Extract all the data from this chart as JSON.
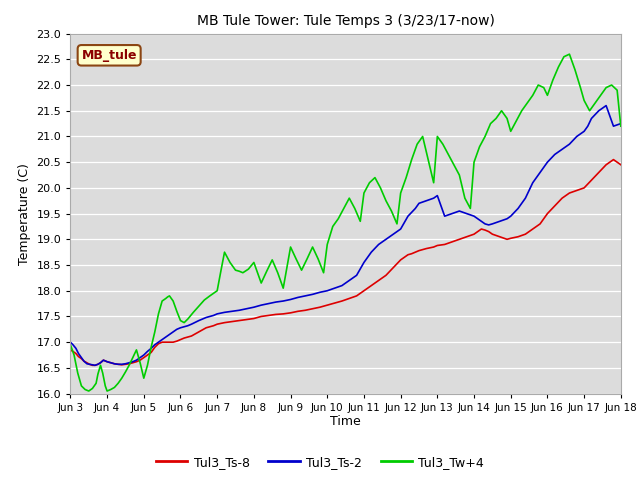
{
  "title": "MB Tule Tower: Tule Temps 3 (3/23/17-now)",
  "xlabel": "Time",
  "ylabel": "Temperature (C)",
  "ylim": [
    16.0,
    23.0
  ],
  "xlim": [
    0,
    15
  ],
  "yticks": [
    16.0,
    16.5,
    17.0,
    17.5,
    18.0,
    18.5,
    19.0,
    19.5,
    20.0,
    20.5,
    21.0,
    21.5,
    22.0,
    22.5,
    23.0
  ],
  "xtick_labels": [
    "Jun 3",
    "Jun 4",
    "Jun 5",
    "Jun 6",
    "Jun 7",
    "Jun 8",
    "Jun 9",
    "Jun 10",
    "Jun 11",
    "Jun 12",
    "Jun 13",
    "Jun 14",
    "Jun 15",
    "Jun 16",
    "Jun 17",
    "Jun 18"
  ],
  "bg_color": "#dcdcdc",
  "fig_bg_color": "#ffffff",
  "legend_box_label": "MB_tule",
  "legend_box_color": "#ffffcc",
  "legend_box_edge": "#8B4513",
  "line_colors": [
    "#dd0000",
    "#0000cc",
    "#00cc00"
  ],
  "line_labels": [
    "Tul3_Ts-8",
    "Tul3_Ts-2",
    "Tul3_Tw+4"
  ],
  "line_width": 1.2,
  "ts8_x": [
    0.0,
    0.07,
    0.15,
    0.22,
    0.3,
    0.37,
    0.45,
    0.52,
    0.6,
    0.67,
    0.75,
    0.82,
    0.9,
    1.0,
    1.1,
    1.2,
    1.3,
    1.4,
    1.5,
    1.6,
    1.7,
    1.8,
    1.9,
    2.0,
    2.1,
    2.2,
    2.3,
    2.4,
    2.5,
    2.6,
    2.7,
    2.8,
    2.9,
    3.0,
    3.1,
    3.2,
    3.3,
    3.5,
    3.7,
    3.9,
    4.0,
    4.2,
    4.4,
    4.6,
    4.8,
    5.0,
    5.2,
    5.4,
    5.6,
    5.8,
    6.0,
    6.2,
    6.4,
    6.6,
    6.8,
    7.0,
    7.2,
    7.4,
    7.6,
    7.8,
    8.0,
    8.2,
    8.4,
    8.6,
    8.8,
    9.0,
    9.1,
    9.2,
    9.3,
    9.4,
    9.5,
    9.7,
    9.9,
    10.0,
    10.2,
    10.4,
    10.6,
    10.8,
    11.0,
    11.1,
    11.2,
    11.3,
    11.4,
    11.5,
    11.7,
    11.9,
    12.0,
    12.2,
    12.4,
    12.6,
    12.8,
    13.0,
    13.2,
    13.4,
    13.6,
    13.8,
    14.0,
    14.2,
    14.4,
    14.6,
    14.8,
    15.0
  ],
  "ts8_y": [
    16.85,
    16.82,
    16.78,
    16.72,
    16.68,
    16.63,
    16.6,
    16.57,
    16.55,
    16.55,
    16.57,
    16.6,
    16.65,
    16.62,
    16.6,
    16.58,
    16.57,
    16.56,
    16.57,
    16.58,
    16.6,
    16.62,
    16.65,
    16.7,
    16.75,
    16.8,
    16.9,
    16.97,
    17.0,
    17.0,
    17.0,
    17.0,
    17.02,
    17.05,
    17.08,
    17.1,
    17.12,
    17.2,
    17.28,
    17.32,
    17.35,
    17.38,
    17.4,
    17.42,
    17.44,
    17.46,
    17.5,
    17.52,
    17.54,
    17.55,
    17.57,
    17.6,
    17.62,
    17.65,
    17.68,
    17.72,
    17.76,
    17.8,
    17.85,
    17.9,
    18.0,
    18.1,
    18.2,
    18.3,
    18.45,
    18.6,
    18.65,
    18.7,
    18.72,
    18.75,
    18.78,
    18.82,
    18.85,
    18.88,
    18.9,
    18.95,
    19.0,
    19.05,
    19.1,
    19.15,
    19.2,
    19.18,
    19.15,
    19.1,
    19.05,
    19.0,
    19.02,
    19.05,
    19.1,
    19.2,
    19.3,
    19.5,
    19.65,
    19.8,
    19.9,
    19.95,
    20.0,
    20.15,
    20.3,
    20.45,
    20.55,
    20.45
  ],
  "ts2_x": [
    0.0,
    0.07,
    0.15,
    0.22,
    0.3,
    0.37,
    0.45,
    0.52,
    0.6,
    0.67,
    0.75,
    0.82,
    0.9,
    1.0,
    1.1,
    1.2,
    1.3,
    1.4,
    1.5,
    1.6,
    1.7,
    1.8,
    1.9,
    2.0,
    2.1,
    2.2,
    2.3,
    2.4,
    2.5,
    2.6,
    2.7,
    2.8,
    2.9,
    3.0,
    3.1,
    3.2,
    3.3,
    3.5,
    3.7,
    3.9,
    4.0,
    4.2,
    4.4,
    4.6,
    4.8,
    5.0,
    5.2,
    5.4,
    5.6,
    5.8,
    6.0,
    6.2,
    6.4,
    6.6,
    6.8,
    7.0,
    7.2,
    7.4,
    7.6,
    7.8,
    8.0,
    8.2,
    8.4,
    8.6,
    8.8,
    9.0,
    9.2,
    9.4,
    9.5,
    9.7,
    9.9,
    10.0,
    10.2,
    10.4,
    10.6,
    10.8,
    11.0,
    11.1,
    11.2,
    11.3,
    11.4,
    11.5,
    11.7,
    11.9,
    12.0,
    12.2,
    12.4,
    12.6,
    12.8,
    13.0,
    13.2,
    13.4,
    13.6,
    13.8,
    14.0,
    14.1,
    14.2,
    14.4,
    14.6,
    14.8,
    15.0
  ],
  "ts2_y": [
    17.0,
    16.95,
    16.88,
    16.78,
    16.7,
    16.63,
    16.58,
    16.57,
    16.56,
    16.55,
    16.57,
    16.6,
    16.65,
    16.62,
    16.6,
    16.58,
    16.57,
    16.57,
    16.58,
    16.6,
    16.62,
    16.65,
    16.7,
    16.75,
    16.82,
    16.88,
    16.95,
    17.0,
    17.05,
    17.1,
    17.15,
    17.2,
    17.25,
    17.28,
    17.3,
    17.32,
    17.35,
    17.42,
    17.48,
    17.52,
    17.55,
    17.58,
    17.6,
    17.62,
    17.65,
    17.68,
    17.72,
    17.75,
    17.78,
    17.8,
    17.83,
    17.87,
    17.9,
    17.93,
    17.97,
    18.0,
    18.05,
    18.1,
    18.2,
    18.3,
    18.55,
    18.75,
    18.9,
    19.0,
    19.1,
    19.2,
    19.45,
    19.6,
    19.7,
    19.75,
    19.8,
    19.85,
    19.45,
    19.5,
    19.55,
    19.5,
    19.45,
    19.4,
    19.35,
    19.3,
    19.28,
    19.3,
    19.35,
    19.4,
    19.45,
    19.6,
    19.8,
    20.1,
    20.3,
    20.5,
    20.65,
    20.75,
    20.85,
    21.0,
    21.1,
    21.2,
    21.35,
    21.5,
    21.6,
    21.2,
    21.25
  ],
  "tw4_x": [
    0.0,
    0.1,
    0.2,
    0.3,
    0.4,
    0.5,
    0.6,
    0.7,
    0.75,
    0.82,
    0.88,
    0.95,
    1.0,
    1.1,
    1.2,
    1.3,
    1.4,
    1.5,
    1.6,
    1.7,
    1.8,
    1.9,
    2.0,
    2.1,
    2.2,
    2.3,
    2.4,
    2.5,
    2.6,
    2.65,
    2.7,
    2.75,
    2.8,
    2.9,
    3.0,
    3.1,
    3.2,
    3.35,
    3.5,
    3.65,
    3.8,
    3.9,
    4.0,
    4.1,
    4.2,
    4.35,
    4.5,
    4.6,
    4.7,
    4.85,
    5.0,
    5.1,
    5.2,
    5.35,
    5.5,
    5.65,
    5.8,
    5.9,
    6.0,
    6.15,
    6.3,
    6.45,
    6.6,
    6.75,
    6.9,
    7.0,
    7.15,
    7.3,
    7.45,
    7.6,
    7.75,
    7.9,
    8.0,
    8.15,
    8.3,
    8.45,
    8.6,
    8.75,
    8.9,
    9.0,
    9.15,
    9.3,
    9.45,
    9.6,
    9.75,
    9.9,
    10.0,
    10.15,
    10.3,
    10.45,
    10.6,
    10.75,
    10.9,
    11.0,
    11.15,
    11.3,
    11.45,
    11.6,
    11.75,
    11.9,
    12.0,
    12.15,
    12.3,
    12.45,
    12.6,
    12.75,
    12.9,
    13.0,
    13.15,
    13.3,
    13.45,
    13.6,
    13.75,
    13.9,
    14.0,
    14.15,
    14.3,
    14.45,
    14.6,
    14.75,
    14.9,
    15.0
  ],
  "tw4_y": [
    16.95,
    16.75,
    16.4,
    16.15,
    16.08,
    16.05,
    16.1,
    16.2,
    16.38,
    16.55,
    16.4,
    16.15,
    16.05,
    16.08,
    16.12,
    16.2,
    16.3,
    16.42,
    16.55,
    16.7,
    16.85,
    16.6,
    16.3,
    16.55,
    16.9,
    17.2,
    17.55,
    17.8,
    17.85,
    17.88,
    17.9,
    17.85,
    17.8,
    17.6,
    17.42,
    17.38,
    17.45,
    17.58,
    17.7,
    17.82,
    17.9,
    17.95,
    18.0,
    18.38,
    18.75,
    18.55,
    18.4,
    18.38,
    18.35,
    18.42,
    18.55,
    18.35,
    18.15,
    18.38,
    18.6,
    18.35,
    18.05,
    18.45,
    18.85,
    18.62,
    18.4,
    18.62,
    18.85,
    18.62,
    18.35,
    18.9,
    19.25,
    19.4,
    19.6,
    19.8,
    19.6,
    19.35,
    19.9,
    20.1,
    20.2,
    20.0,
    19.75,
    19.55,
    19.3,
    19.9,
    20.2,
    20.55,
    20.85,
    21.0,
    20.55,
    20.1,
    21.0,
    20.85,
    20.65,
    20.45,
    20.25,
    19.8,
    19.6,
    20.5,
    20.8,
    21.0,
    21.25,
    21.35,
    21.5,
    21.35,
    21.1,
    21.3,
    21.5,
    21.65,
    21.8,
    22.0,
    21.95,
    21.8,
    22.1,
    22.35,
    22.55,
    22.6,
    22.3,
    21.95,
    21.7,
    21.5,
    21.65,
    21.8,
    21.95,
    22.0,
    21.9,
    21.2
  ]
}
